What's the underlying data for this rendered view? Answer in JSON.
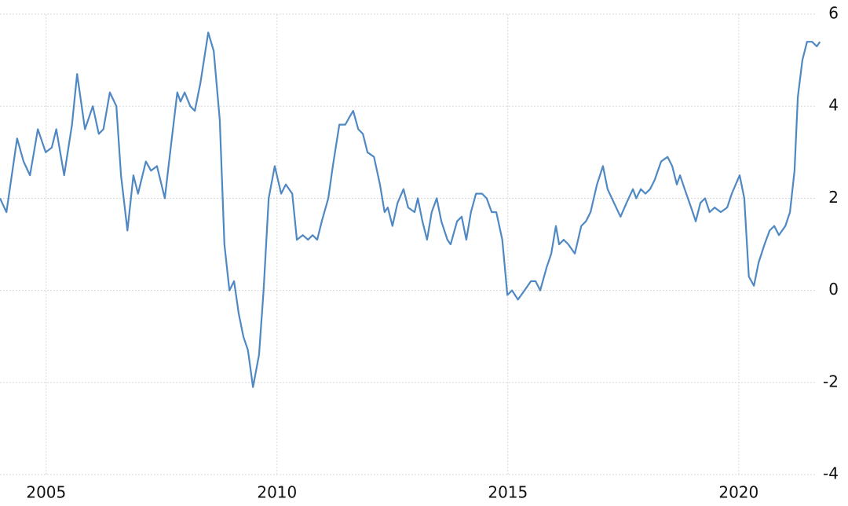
{
  "chart_data": {
    "type": "line",
    "x": [
      2004.0,
      2004.14,
      2004.37,
      2004.51,
      2004.65,
      2004.82,
      2004.99,
      2005.12,
      2005.22,
      2005.39,
      2005.56,
      2005.67,
      2005.84,
      2006.01,
      2006.14,
      2006.24,
      2006.38,
      2006.52,
      2006.62,
      2006.76,
      2006.89,
      2006.99,
      2007.16,
      2007.27,
      2007.4,
      2007.57,
      2007.71,
      2007.84,
      2007.91,
      2008.0,
      2008.12,
      2008.22,
      2008.34,
      2008.51,
      2008.63,
      2008.76,
      2008.86,
      2008.97,
      2009.07,
      2009.17,
      2009.27,
      2009.37,
      2009.48,
      2009.61,
      2009.71,
      2009.82,
      2009.95,
      2010.09,
      2010.19,
      2010.33,
      2010.43,
      2010.56,
      2010.67,
      2010.77,
      2010.87,
      2010.97,
      2011.11,
      2011.21,
      2011.35,
      2011.48,
      2011.59,
      2011.65,
      2011.76,
      2011.86,
      2011.96,
      2012.1,
      2012.23,
      2012.33,
      2012.4,
      2012.5,
      2012.61,
      2012.74,
      2012.84,
      2012.98,
      2013.05,
      2013.15,
      2013.25,
      2013.35,
      2013.46,
      2013.56,
      2013.69,
      2013.76,
      2013.9,
      2014.0,
      2014.1,
      2014.2,
      2014.31,
      2014.44,
      2014.54,
      2014.65,
      2014.75,
      2014.88,
      2014.99,
      2015.09,
      2015.22,
      2015.36,
      2015.5,
      2015.6,
      2015.7,
      2015.84,
      2015.94,
      2016.04,
      2016.11,
      2016.21,
      2016.31,
      2016.45,
      2016.59,
      2016.69,
      2016.79,
      2016.93,
      2017.06,
      2017.16,
      2017.3,
      2017.44,
      2017.57,
      2017.71,
      2017.78,
      2017.88,
      2017.98,
      2018.08,
      2018.18,
      2018.32,
      2018.46,
      2018.56,
      2018.66,
      2018.73,
      2018.83,
      2018.97,
      2019.07,
      2019.17,
      2019.27,
      2019.37,
      2019.48,
      2019.61,
      2019.75,
      2019.85,
      2020.02,
      2020.12,
      2020.22,
      2020.33,
      2020.43,
      2020.56,
      2020.67,
      2020.77,
      2020.87,
      2021.01,
      2021.11,
      2021.21,
      2021.28,
      2021.38,
      2021.48,
      2021.59,
      2021.69,
      2021.76
    ],
    "series": [
      {
        "color": "#4f88c2",
        "values": [
          2.0,
          1.7,
          3.3,
          2.8,
          2.5,
          3.5,
          3.0,
          3.1,
          3.5,
          2.5,
          3.6,
          4.7,
          3.5,
          4.0,
          3.4,
          3.5,
          4.3,
          4.0,
          2.5,
          1.3,
          2.5,
          2.1,
          2.8,
          2.6,
          2.7,
          2.0,
          3.2,
          4.3,
          4.1,
          4.3,
          4.0,
          3.9,
          4.5,
          5.6,
          5.2,
          3.7,
          1.0,
          0.0,
          0.2,
          -0.5,
          -1.0,
          -1.3,
          -2.1,
          -1.4,
          0.0,
          2.0,
          2.7,
          2.1,
          2.3,
          2.1,
          1.1,
          1.2,
          1.1,
          1.2,
          1.1,
          1.5,
          2.0,
          2.7,
          3.6,
          3.6,
          3.8,
          3.9,
          3.5,
          3.4,
          3.0,
          2.9,
          2.3,
          1.7,
          1.8,
          1.4,
          1.9,
          2.2,
          1.8,
          1.7,
          2.0,
          1.5,
          1.1,
          1.7,
          2.0,
          1.5,
          1.1,
          1.0,
          1.5,
          1.6,
          1.1,
          1.7,
          2.1,
          2.1,
          2.0,
          1.7,
          1.7,
          1.1,
          -0.1,
          0.0,
          -0.2,
          0.0,
          0.2,
          0.2,
          0.0,
          0.5,
          0.8,
          1.4,
          1.0,
          1.1,
          1.0,
          0.8,
          1.4,
          1.5,
          1.7,
          2.3,
          2.7,
          2.2,
          1.9,
          1.6,
          1.9,
          2.2,
          2.0,
          2.2,
          2.1,
          2.2,
          2.4,
          2.8,
          2.9,
          2.7,
          2.3,
          2.5,
          2.2,
          1.8,
          1.5,
          1.9,
          2.0,
          1.7,
          1.8,
          1.7,
          1.8,
          2.1,
          2.5,
          2.0,
          0.3,
          0.1,
          0.6,
          1.0,
          1.3,
          1.4,
          1.2,
          1.4,
          1.7,
          2.6,
          4.2,
          5.0,
          5.4,
          5.4,
          5.3,
          5.4
        ]
      }
    ],
    "xlim": [
      2004,
      2022
    ],
    "xticks": [
      2005,
      2010,
      2015,
      2020
    ],
    "ylim": [
      -4,
      6
    ],
    "yticks": [
      -4,
      -2,
      0,
      2,
      4,
      6
    ],
    "grid": true
  }
}
